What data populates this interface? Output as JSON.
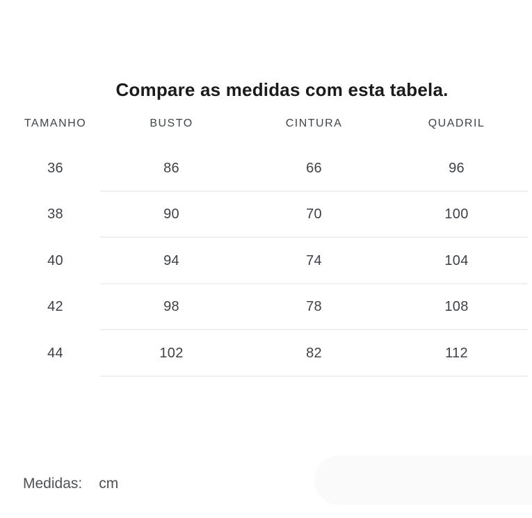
{
  "title": "Compare as medidas com esta tabela.",
  "table": {
    "columns": [
      "TAMANHO",
      "BUSTO",
      "CINTURA",
      "QUADRIL"
    ],
    "rows": [
      [
        "36",
        "86",
        "66",
        "96"
      ],
      [
        "38",
        "90",
        "70",
        "100"
      ],
      [
        "40",
        "94",
        "74",
        "104"
      ],
      [
        "42",
        "98",
        "78",
        "108"
      ],
      [
        "44",
        "102",
        "82",
        "112"
      ]
    ]
  },
  "footer": {
    "label": "Medidas:",
    "value": "cm"
  },
  "colors": {
    "title_text": "#1b1b1b",
    "table_text": "#3e4247",
    "header_text": "#3f4448",
    "footer_text": "#4e5154",
    "divider": "#f0f0f0",
    "pill_background": "#fafafa",
    "page_background": "#ffffff"
  }
}
